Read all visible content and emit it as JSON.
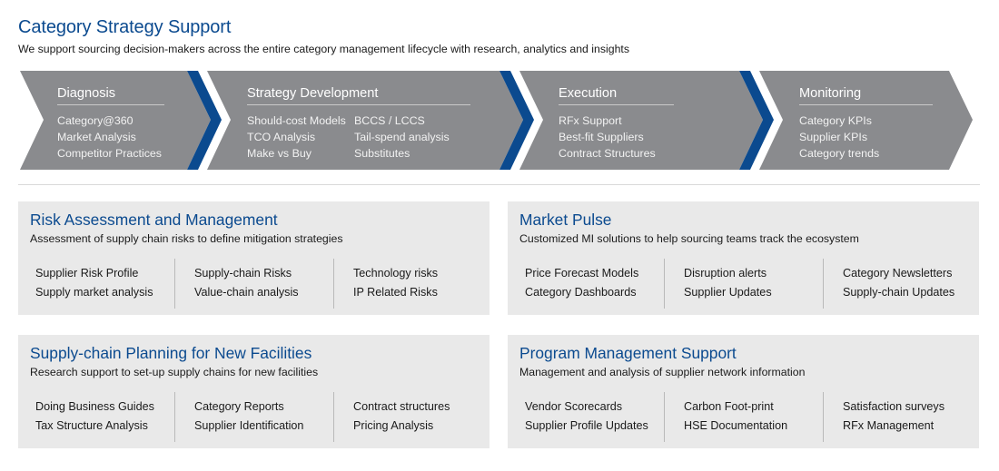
{
  "header": {
    "title": "Category Strategy Support",
    "subtitle": "We support sourcing decision-makers across the entire category management lifecycle with research, analytics and insights"
  },
  "colors": {
    "brand_blue": "#0b4a8f",
    "chevron_gray": "#8a8b8e",
    "card_gray": "#e9e9e9"
  },
  "stages": [
    {
      "title": "Diagnosis",
      "items": [
        "Category@360",
        "Market Analysis",
        "Competitor Practices"
      ]
    },
    {
      "title": "Strategy Development",
      "left_items": [
        "Should-cost Models",
        "TCO Analysis",
        "Make vs Buy"
      ],
      "right_items": [
        "BCCS / LCCS",
        "Tail-spend analysis",
        "Substitutes"
      ]
    },
    {
      "title": "Execution",
      "items": [
        "RFx Support",
        "Best-fit Suppliers",
        "Contract Structures"
      ]
    },
    {
      "title": "Monitoring",
      "items": [
        "Category KPIs",
        "Supplier KPIs",
        "Category trends"
      ]
    }
  ],
  "cards": [
    {
      "title": "Risk Assessment and Management",
      "description": "Assessment of supply chain risks to define mitigation strategies",
      "columns": [
        [
          "Supplier Risk Profile",
          "Supply market analysis"
        ],
        [
          "Supply-chain Risks",
          "Value-chain analysis"
        ],
        [
          "Technology risks",
          "IP Related Risks"
        ]
      ]
    },
    {
      "title": "Market Pulse",
      "description": "Customized MI solutions to help sourcing teams track the ecosystem",
      "columns": [
        [
          "Price Forecast Models",
          "Category Dashboards"
        ],
        [
          "Disruption alerts",
          "Supplier Updates"
        ],
        [
          "Category Newsletters",
          "Supply-chain Updates"
        ]
      ]
    },
    {
      "title": "Supply-chain Planning for New Facilities",
      "description": "Research support to set-up supply chains for new facilities",
      "columns": [
        [
          "Doing Business Guides",
          "Tax Structure Analysis"
        ],
        [
          "Category Reports",
          "Supplier Identification"
        ],
        [
          "Contract structures",
          "Pricing Analysis"
        ]
      ]
    },
    {
      "title": "Program Management Support",
      "description": "Management and analysis of supplier network information",
      "columns": [
        [
          "Vendor Scorecards",
          "Supplier Profile Updates"
        ],
        [
          "Carbon Foot-print",
          "HSE Documentation"
        ],
        [
          "Satisfaction surveys",
          "RFx Management"
        ]
      ]
    }
  ]
}
